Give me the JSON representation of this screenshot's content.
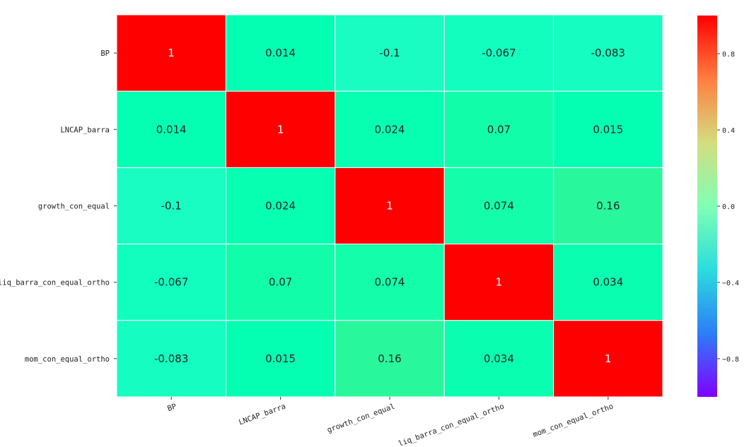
{
  "chart_data": {
    "type": "heatmap",
    "title": "",
    "xlabel": "",
    "ylabel": "",
    "row_labels": [
      "BP",
      "LNCAP_barra",
      "growth_con_equal",
      "liq_barra_con_equal_ortho",
      "mom_con_equal_ortho"
    ],
    "col_labels": [
      "BP",
      "LNCAP_barra",
      "growth_con_equal",
      "liq_barra_con_equal_ortho",
      "mom_con_equal_ortho"
    ],
    "values": [
      [
        1,
        0.014,
        -0.1,
        -0.067,
        -0.083
      ],
      [
        0.014,
        1,
        0.024,
        0.07,
        0.015
      ],
      [
        -0.1,
        0.024,
        1,
        0.074,
        0.16
      ],
      [
        -0.067,
        0.07,
        0.074,
        1,
        0.034
      ],
      [
        -0.083,
        0.015,
        0.16,
        0.034,
        1
      ]
    ],
    "cell_labels": [
      [
        "1",
        "0.014",
        "-0.1",
        "-0.067",
        "-0.083"
      ],
      [
        "0.014",
        "1",
        "0.024",
        "0.07",
        "0.015"
      ],
      [
        "-0.1",
        "0.024",
        "1",
        "0.074",
        "0.16"
      ],
      [
        "-0.067",
        "0.07",
        "0.074",
        "1",
        "0.034"
      ],
      [
        "-0.083",
        "0.015",
        "0.16",
        "0.034",
        "1"
      ]
    ],
    "colormap": "rainbow",
    "vmin": -1,
    "vmax": 1,
    "colorbar": {
      "ticks": [
        0.8,
        0.4,
        0.0,
        -0.4,
        -0.8
      ],
      "tick_labels": [
        "0.8",
        "0.4",
        "0.0",
        "−0.4",
        "−0.8"
      ]
    },
    "grid_color": "#ffffff"
  }
}
